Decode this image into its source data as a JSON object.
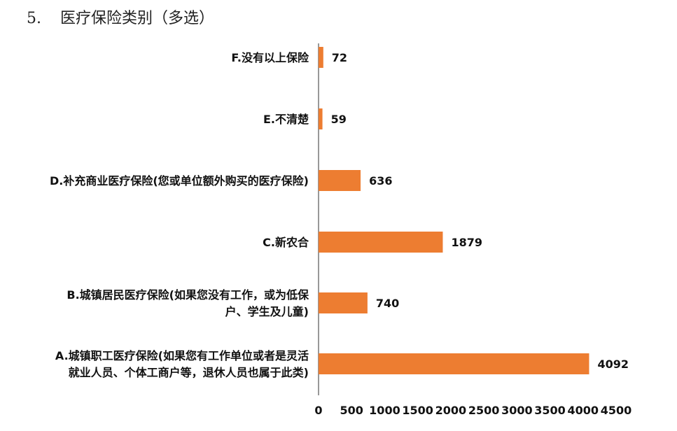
{
  "question": {
    "number": "5.",
    "title": "医疗保险类别（多选）"
  },
  "chart_data": {
    "type": "bar",
    "orientation": "horizontal",
    "categories": [
      [
        "F.没有以上保险"
      ],
      [
        "E.不清楚"
      ],
      [
        "D.补充商业医疗保险(您或单位额外购买的医疗保险)"
      ],
      [
        "C.新农合"
      ],
      [
        "B.城镇居民医疗保险(如果您没有工作，或为低保",
        "户、学生及儿童)"
      ],
      [
        "A.城镇职工医疗保险(如果您有工作单位或者是灵活",
        "就业人员、个体工商户等，退休人员也属于此类)"
      ]
    ],
    "values": [
      72,
      59,
      636,
      1879,
      740,
      4092
    ],
    "xlim": [
      0,
      4500
    ],
    "xticks": [
      "0",
      "500",
      "1000",
      "1500",
      "2000",
      "2500",
      "3000",
      "3500",
      "4000",
      "4500"
    ],
    "bar_color": "#ED7D31",
    "grid": false,
    "legend": "none"
  }
}
